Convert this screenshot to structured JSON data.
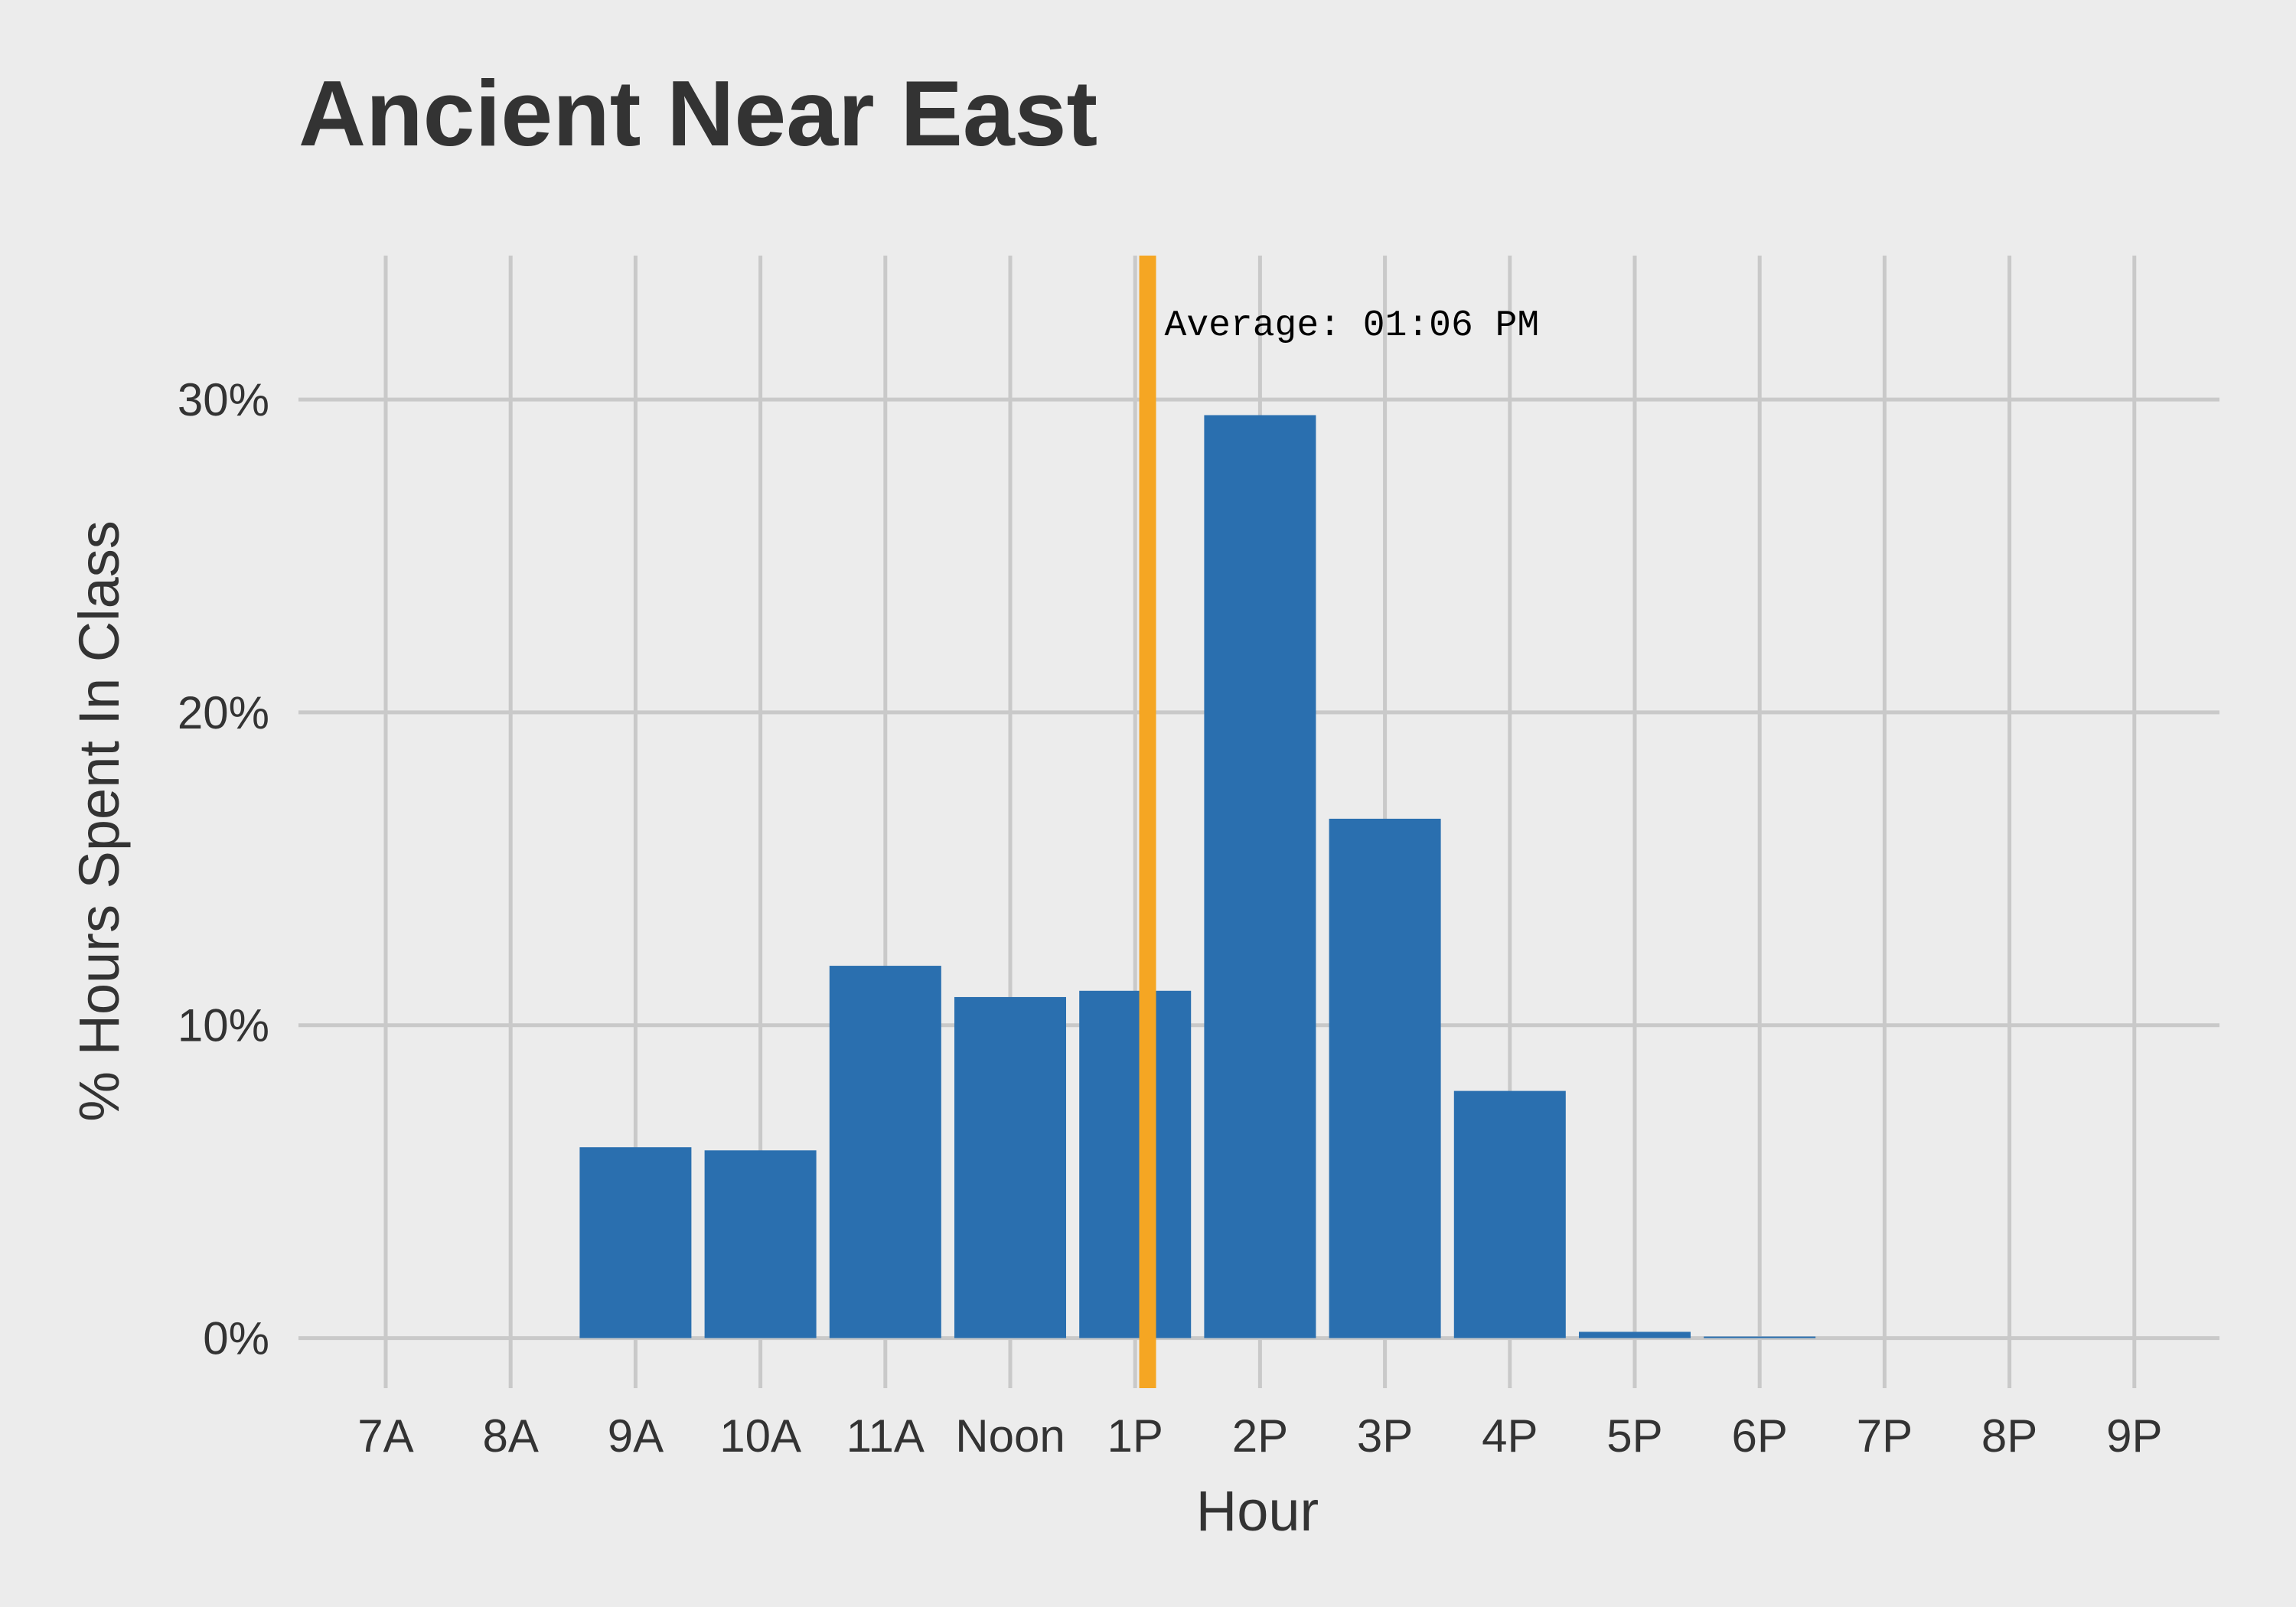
{
  "chart_data": {
    "type": "bar",
    "title": "Ancient Near East",
    "xlabel": "Hour",
    "ylabel": "% Hours Spent In Class",
    "categories": [
      "7A",
      "8A",
      "9A",
      "10A",
      "11A",
      "Noon",
      "1P",
      "2P",
      "3P",
      "4P",
      "5P",
      "6P",
      "7P",
      "8P",
      "9P"
    ],
    "values": [
      0,
      0,
      6.1,
      6.0,
      11.9,
      10.9,
      11.1,
      29.5,
      16.6,
      7.9,
      0.2,
      0.05,
      0,
      0,
      0
    ],
    "yticks": [
      0,
      10,
      20,
      30
    ],
    "ytick_labels": [
      "0%",
      "10%",
      "20%",
      "30%"
    ],
    "ylim": [
      -1.6,
      34.6
    ],
    "grid": true,
    "bar_color": "#2a6faf",
    "annotation": {
      "type": "vline",
      "hour": 13.1,
      "label": "Average: 01:06 PM",
      "color": "#f5a623"
    },
    "background": "#ececec"
  }
}
